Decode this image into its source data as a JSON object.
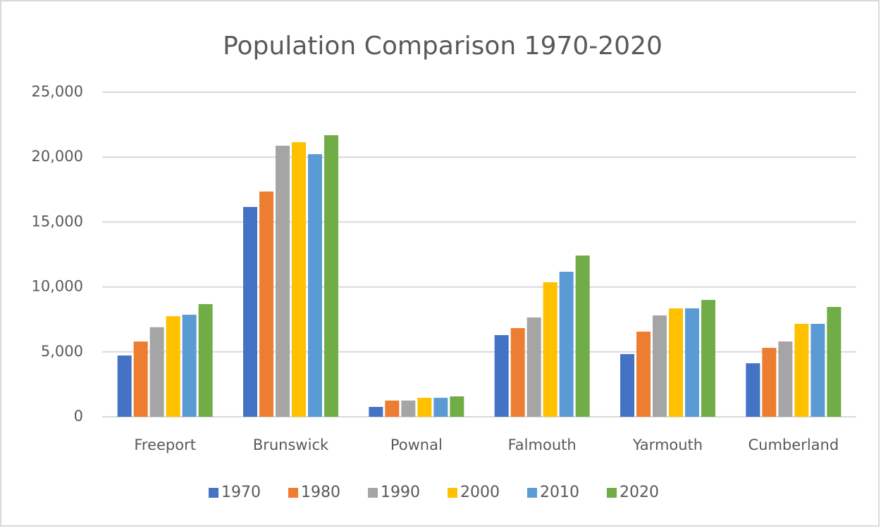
{
  "chart_data": {
    "type": "bar",
    "title": "Population Comparison 1970-2020",
    "categories": [
      "Freeport",
      "Brunswick",
      "Pownal",
      "Falmouth",
      "Yarmouth",
      "Cumberland"
    ],
    "series": [
      {
        "name": "1970",
        "color": "#4472c4",
        "values": [
          4720,
          16160,
          760,
          6290,
          4830,
          4120
        ]
      },
      {
        "name": "1980",
        "color": "#ed7d31",
        "values": [
          5800,
          17350,
          1250,
          6830,
          6560,
          5310
        ]
      },
      {
        "name": "1990",
        "color": "#a5a5a5",
        "values": [
          6900,
          20880,
          1250,
          7650,
          7810,
          5800
        ]
      },
      {
        "name": "2000",
        "color": "#ffc000",
        "values": [
          7750,
          21150,
          1460,
          10360,
          8350,
          7160
        ]
      },
      {
        "name": "2010",
        "color": "#5b9bd5",
        "values": [
          7860,
          20230,
          1460,
          11170,
          8350,
          7160
        ]
      },
      {
        "name": "2020",
        "color": "#70ad47",
        "values": [
          8680,
          21690,
          1570,
          12420,
          9000,
          8460
        ]
      }
    ],
    "ylim": [
      0,
      25000
    ],
    "yticks": [
      0,
      {
        "value": 5000,
        "label": "5,000"
      },
      {
        "value": 10000,
        "label": "10,000"
      },
      {
        "value": 15000,
        "label": "15,000"
      },
      {
        "value": 20000,
        "label": "20,000"
      },
      {
        "value": 25000,
        "label": "25,000"
      }
    ],
    "grid": true,
    "legend": "bottom"
  }
}
